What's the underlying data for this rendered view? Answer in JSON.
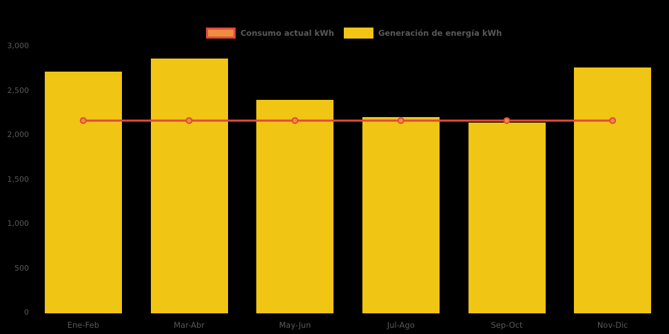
{
  "page": {
    "background_color": "#000000",
    "text_color": "#59595B"
  },
  "legend": {
    "items": [
      {
        "label": "Consumo actual kWh",
        "swatch": "line-marker-swatch",
        "fill": "#ED8D3D",
        "border": "#E2493D"
      },
      {
        "label": "Generación de energía kWh",
        "swatch": "bar-swatch",
        "fill": "#F0C514"
      }
    ]
  },
  "chart_data": {
    "type": "bar",
    "title": "",
    "xlabel": "",
    "ylabel": "",
    "categories": [
      "Ene-Feb",
      "Mar-Abr",
      "May-Jun",
      "Jul-Ago",
      "Sep-Oct",
      "Nov-Dic"
    ],
    "series": [
      {
        "name": "Generación de energía kWh",
        "type": "bar",
        "color": "#F0C514",
        "values": [
          2720,
          2870,
          2400,
          2210,
          2150,
          2765
        ]
      },
      {
        "name": "Consumo actual kWh",
        "type": "line",
        "color": "#E2493D",
        "marker_fill": "#ED8D3D",
        "values": [
          2170,
          2170,
          2170,
          2170,
          2170,
          2170
        ]
      }
    ],
    "ylim": [
      0,
      3000
    ],
    "yticks": [
      {
        "value": 0,
        "label": "0"
      },
      {
        "value": 500,
        "label": "500"
      },
      {
        "value": 1000,
        "label": "1,000"
      },
      {
        "value": 1500,
        "label": "1,500"
      },
      {
        "value": 2000,
        "label": "2,000"
      },
      {
        "value": 2500,
        "label": "2,500"
      },
      {
        "value": 3000,
        "label": "3,000"
      }
    ],
    "grid": false,
    "legend_position": "top-center"
  }
}
